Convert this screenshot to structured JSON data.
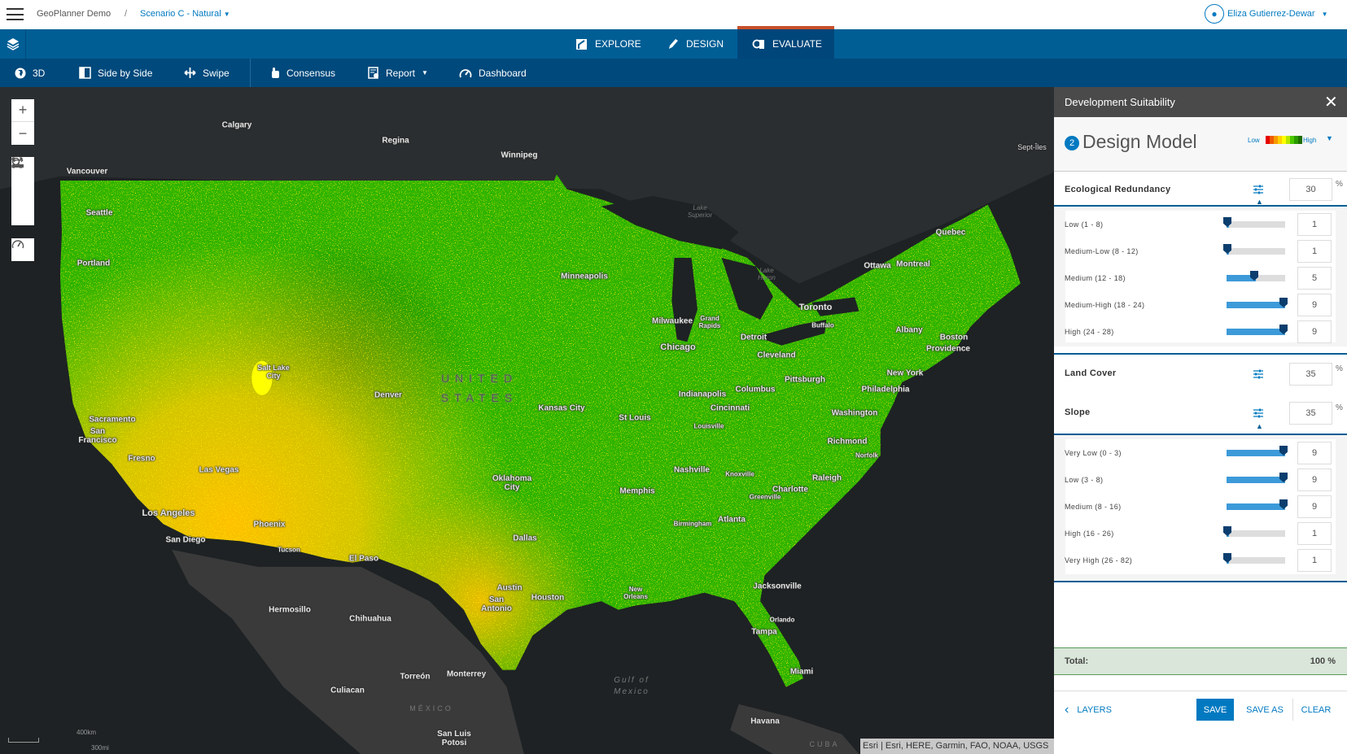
{
  "header": {
    "app_title": "GeoPlanner Demo",
    "separator": "/",
    "scenario": "Scenario C - Natural",
    "user": "Eliza Gutierrez-Dewar"
  },
  "nav": {
    "tabs": [
      {
        "label": "EXPLORE",
        "icon": "explore-icon"
      },
      {
        "label": "DESIGN",
        "icon": "pencil-icon"
      },
      {
        "label": "EVALUATE",
        "icon": "evaluate-icon",
        "active": true
      }
    ],
    "active_color": "#c8502a"
  },
  "toolbar": {
    "items": [
      {
        "label": "3D",
        "icon": "globe-icon"
      },
      {
        "label": "Side by Side",
        "icon": "side-by-side-icon"
      },
      {
        "label": "Swipe",
        "icon": "swipe-icon"
      },
      {
        "label": "Consensus",
        "icon": "consensus-icon"
      },
      {
        "label": "Report",
        "icon": "report-icon"
      },
      {
        "label": "Dashboard",
        "icon": "dashboard-icon"
      }
    ]
  },
  "map": {
    "labels": [
      "Calgary",
      "Regina",
      "Winnipeg",
      "Vancouver",
      "Seattle",
      "Portland",
      "Sept-Îles",
      "Quebec",
      "Ottawa",
      "Montreal",
      "Toronto",
      "Minneapolis",
      "Milwaukee",
      "Grand Rapids",
      "Chicago",
      "Detroit",
      "Cleveland",
      "Buffalo",
      "Albany",
      "Boston",
      "Providence",
      "New York",
      "Philadelphia",
      "Pittsburgh",
      "Washington",
      "Richmond",
      "Norfolk",
      "Raleigh",
      "Charlotte",
      "Greenville",
      "Columbus",
      "Indianapolis",
      "Cincinnati",
      "Louisville",
      "St Louis",
      "Kansas City",
      "Denver",
      "Salt Lake City",
      "Sacramento",
      "San Francisco",
      "Fresno",
      "Las Vegas",
      "Los Angeles",
      "San Diego",
      "Phoenix",
      "Tucson",
      "El Paso",
      "Oklahoma City",
      "Dallas",
      "Memphis",
      "Nashville",
      "Knoxville",
      "Birmingham",
      "Atlanta",
      "Austin",
      "San Antonio",
      "Houston",
      "New Orleans",
      "Jacksonville",
      "Orlando",
      "Tampa",
      "Miami",
      "Hermosillo",
      "Chihuahua",
      "Monterrey",
      "Torreón",
      "Culiacan",
      "San Luis Potosi",
      "Havana",
      "Lake Superior",
      "Lake Huron",
      "Gulf of Mexico",
      "UNITED STATES",
      "MÉXICO",
      "CUBA"
    ],
    "scale": {
      "km": "400km",
      "mi": "300mi"
    },
    "attribution": "Esri | Esri, HERE, Garmin, FAO, NOAA, USGS",
    "colors": {
      "high": "#2db300",
      "dark": "#1e7a00",
      "medium": "#e6c800",
      "low": "#f0a800"
    }
  },
  "panel": {
    "title": "Development Suitability",
    "step": "2",
    "model_title": "Design Model",
    "legend": {
      "low": "Low",
      "high": "High",
      "colors": [
        "#e60000",
        "#f05a00",
        "#f59b00",
        "#ffd000",
        "#ffff00",
        "#b4e600",
        "#4bc800",
        "#2a9a00",
        "#1e6e00"
      ]
    },
    "criteria": [
      {
        "label": "Ecological Redundancy",
        "weight": "30",
        "unit": "%",
        "expanded": true,
        "classes": [
          {
            "label": "Low (1 - 8)",
            "value": 1
          },
          {
            "label": "Medium-Low (8 - 12)",
            "value": 1
          },
          {
            "label": "Medium (12 - 18)",
            "value": 5
          },
          {
            "label": "Medium-High (18 - 24)",
            "value": 9
          },
          {
            "label": "High (24 - 28)",
            "value": 9
          }
        ]
      },
      {
        "label": "Land Cover",
        "weight": "35",
        "unit": "%",
        "expanded": false
      },
      {
        "label": "Slope",
        "weight": "35",
        "unit": "%",
        "expanded": true,
        "classes": [
          {
            "label": "Very Low (0 - 3)",
            "value": 9
          },
          {
            "label": "Low (3 - 8)",
            "value": 9
          },
          {
            "label": "Medium (8 - 16)",
            "value": 9
          },
          {
            "label": "High (16 - 26)",
            "value": 1
          },
          {
            "label": "Very High (26 - 82)",
            "value": 1
          }
        ]
      }
    ],
    "slider_range": [
      1,
      9
    ],
    "total_label": "Total:",
    "total_value": "100 %",
    "buttons": {
      "layers": "LAYERS",
      "save": "SAVE",
      "save_as": "SAVE AS",
      "clear": "CLEAR"
    }
  }
}
